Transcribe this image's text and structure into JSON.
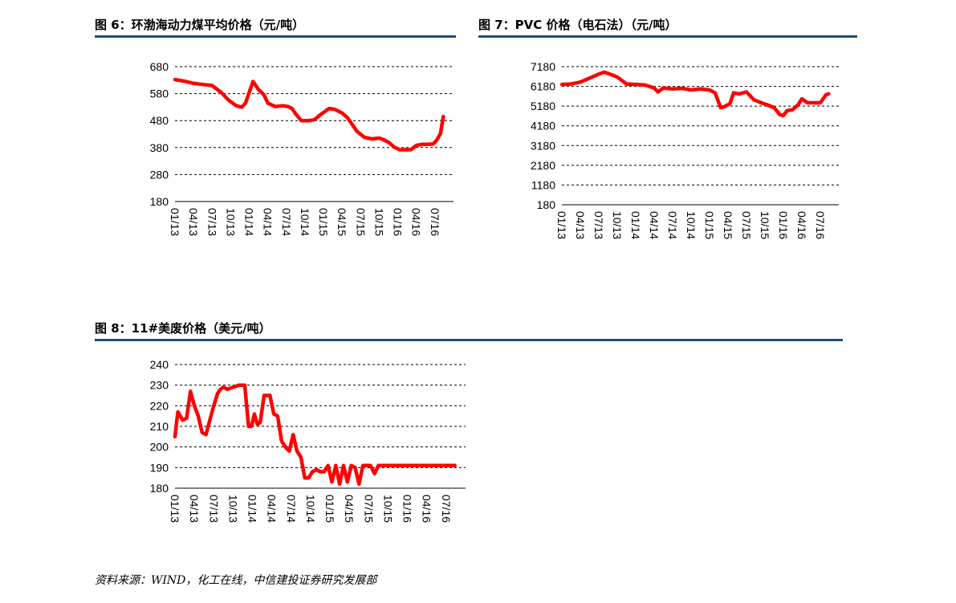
{
  "figures": [
    {
      "title": "图 6：环渤海动力煤平均价格（元/吨）"
    },
    {
      "title": "图 7：PVC 价格（电石法）（元/吨）"
    },
    {
      "title": "图 8：11#美废价格（美元/吨）"
    }
  ],
  "source": "资料来源：WIND，化工在线，中信建投证券研究发展部",
  "colors": {
    "series": "#ff0000",
    "rule": "#1f4e79"
  },
  "chart_data": [
    {
      "type": "line",
      "title": "图 6：环渤海动力煤平均价格（元/吨）",
      "yticks": [
        180,
        280,
        380,
        480,
        580,
        680
      ],
      "ylim": [
        180,
        680
      ],
      "xticks": [
        "01/13",
        "04/13",
        "07/13",
        "10/13",
        "01/14",
        "04/14",
        "07/14",
        "10/14",
        "01/15",
        "04/15",
        "07/15",
        "10/15",
        "01/16",
        "04/16",
        "07/16"
      ],
      "xlim": [
        0,
        15
      ],
      "grid": "horizontal-dashed",
      "x": [
        0,
        0.5,
        1,
        1.5,
        2,
        2.5,
        2.9,
        3.3,
        3.6,
        3.8,
        4.0,
        4.2,
        4.5,
        4.8,
        5.0,
        5.4,
        5.8,
        6.1,
        6.3,
        6.5,
        6.8,
        7.2,
        7.5,
        7.8,
        8.0,
        8.3,
        8.6,
        9.0,
        9.3,
        9.6,
        9.8,
        10.2,
        10.6,
        11.0,
        11.2,
        11.5,
        11.8,
        12.1,
        12.4,
        12.7,
        13.0,
        13.3,
        13.6,
        13.9,
        14.1,
        14.3,
        14.45
      ],
      "y": [
        632,
        626,
        618,
        614,
        610,
        584,
        555,
        535,
        530,
        545,
        585,
        625,
        595,
        575,
        545,
        532,
        535,
        532,
        525,
        505,
        480,
        480,
        483,
        500,
        510,
        525,
        522,
        508,
        490,
        460,
        440,
        418,
        412,
        415,
        410,
        400,
        382,
        372,
        372,
        372,
        388,
        392,
        392,
        393,
        408,
        432,
        495
      ]
    },
    {
      "type": "line",
      "title": "图 7：PVC 价格（电石法）（元/吨）",
      "yticks": [
        180,
        1180,
        2180,
        3180,
        4180,
        5180,
        6180,
        7180
      ],
      "ylim": [
        180,
        7180
      ],
      "xticks": [
        "01/13",
        "04/13",
        "07/13",
        "10/13",
        "01/14",
        "04/14",
        "07/14",
        "10/14",
        "01/15",
        "04/15",
        "07/15",
        "10/15",
        "01/16",
        "04/16",
        "07/16"
      ],
      "xlim": [
        0,
        15
      ],
      "grid": "horizontal-dashed",
      "x": [
        0,
        0.5,
        1.0,
        1.5,
        2.0,
        2.3,
        2.6,
        3.0,
        3.5,
        4.0,
        4.5,
        5.0,
        5.2,
        5.5,
        6.0,
        6.5,
        7.0,
        7.5,
        8.0,
        8.3,
        8.6,
        8.8,
        9.1,
        9.3,
        9.6,
        10.0,
        10.4,
        10.8,
        11.1,
        11.5,
        11.8,
        12.0,
        12.2,
        12.5,
        12.8,
        13.0,
        13.3,
        13.6,
        14.0,
        14.3,
        14.45
      ],
      "y": [
        6280,
        6300,
        6400,
        6600,
        6800,
        6900,
        6800,
        6650,
        6300,
        6280,
        6250,
        6100,
        5900,
        6100,
        6050,
        6080,
        6000,
        6050,
        6000,
        5850,
        5100,
        5150,
        5300,
        5850,
        5800,
        5900,
        5500,
        5350,
        5250,
        5100,
        4750,
        4700,
        4950,
        5000,
        5250,
        5550,
        5350,
        5350,
        5350,
        5750,
        5800
      ]
    },
    {
      "type": "line",
      "title": "图 8：11#美废价格（美元/吨）",
      "yticks": [
        180,
        190,
        200,
        210,
        220,
        230,
        240
      ],
      "ylim": [
        180,
        240
      ],
      "xticks": [
        "01/13",
        "04/13",
        "07/13",
        "10/13",
        "01/14",
        "04/14",
        "07/14",
        "10/14",
        "01/15",
        "04/15",
        "07/15",
        "10/15",
        "01/16",
        "04/16",
        "07/16"
      ],
      "xlim": [
        0,
        15
      ],
      "grid": "horizontal-dashed",
      "x": [
        0,
        0.15,
        0.4,
        0.6,
        0.8,
        1.0,
        1.2,
        1.4,
        1.6,
        1.8,
        2.0,
        2.2,
        2.35,
        2.5,
        2.7,
        3.0,
        3.3,
        3.6,
        3.8,
        3.95,
        4.1,
        4.25,
        4.4,
        4.6,
        4.9,
        5.1,
        5.3,
        5.5,
        5.7,
        5.9,
        6.1,
        6.3,
        6.5,
        6.7,
        6.9,
        7.1,
        7.3,
        7.5,
        7.7,
        7.9,
        8.1,
        8.3,
        8.5,
        8.7,
        8.9,
        9.1,
        9.3,
        9.5,
        9.7,
        9.9,
        10.1,
        10.3,
        10.5,
        10.7,
        10.9,
        11.2,
        11.5,
        12.0,
        12.5,
        13.0,
        13.5,
        14.0,
        14.45
      ],
      "y": [
        205,
        217,
        213,
        214,
        227,
        220,
        215,
        207,
        206,
        213,
        220,
        226,
        228,
        229,
        228,
        229,
        230,
        230,
        210,
        210,
        216,
        211,
        212,
        225,
        225,
        216,
        215,
        203,
        200,
        198,
        206,
        198,
        195,
        185,
        185,
        188,
        189,
        188,
        188,
        191,
        183,
        191,
        182,
        191,
        183,
        191,
        190,
        182,
        191,
        191,
        191,
        187,
        191,
        191,
        191,
        191,
        191,
        191,
        191,
        191,
        191,
        191,
        191
      ]
    }
  ]
}
